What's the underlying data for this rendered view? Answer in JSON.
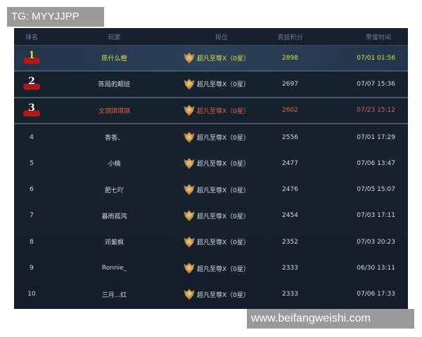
{
  "watermark_top": "TG: MYYJJPP",
  "watermark_bottom": "www.beifangweishi.com",
  "colors": {
    "first": "#d9e04a",
    "third": "#e0604a",
    "normal": "#d3d9e0",
    "background": "#16202d"
  },
  "headers": {
    "rank": "排名",
    "player": "玩家",
    "tier": "段位",
    "score": "竞技积分",
    "time": "荣誉时间"
  },
  "rows": [
    {
      "rank": "1",
      "player": "陈什么橙",
      "tier": "超凡至尊X（0星）",
      "score": "2898",
      "time": "07/01 01:56"
    },
    {
      "rank": "2",
      "player": "陈局的颠班",
      "tier": "超凡至尊X（0星）",
      "score": "2697",
      "time": "07/07 15:36"
    },
    {
      "rank": "3",
      "player": "文琪琪琪琪",
      "tier": "超凡至尊X（0星）",
      "score": "2602",
      "time": "07/23 15:12"
    },
    {
      "rank": "4",
      "player": "香香、",
      "tier": "超凡至尊X（0星）",
      "score": "2556",
      "time": "07/01 17:29"
    },
    {
      "rank": "5",
      "player": "小楠",
      "tier": "超凡至尊X（0星）",
      "score": "2477",
      "time": "07/06 13:47"
    },
    {
      "rank": "6",
      "player": "肥七吖",
      "tier": "超凡至尊X（0星）",
      "score": "2476",
      "time": "07/05 15:07"
    },
    {
      "rank": "7",
      "player": "暮雨孤鸿",
      "tier": "超凡至尊X（0星）",
      "score": "2454",
      "time": "07/03 17:11"
    },
    {
      "rank": "8",
      "player": "邓紫枫",
      "tier": "超凡至尊X（0星）",
      "score": "2352",
      "time": "07/03 20:23"
    },
    {
      "rank": "9",
      "player": "Ronnie_",
      "tier": "超凡至尊X（0星）",
      "score": "2333",
      "time": "06/30 13:11"
    },
    {
      "rank": "10",
      "player": "三月...红",
      "tier": "超凡至尊X（0星）",
      "score": "2333",
      "time": "07/06 17:33"
    }
  ]
}
